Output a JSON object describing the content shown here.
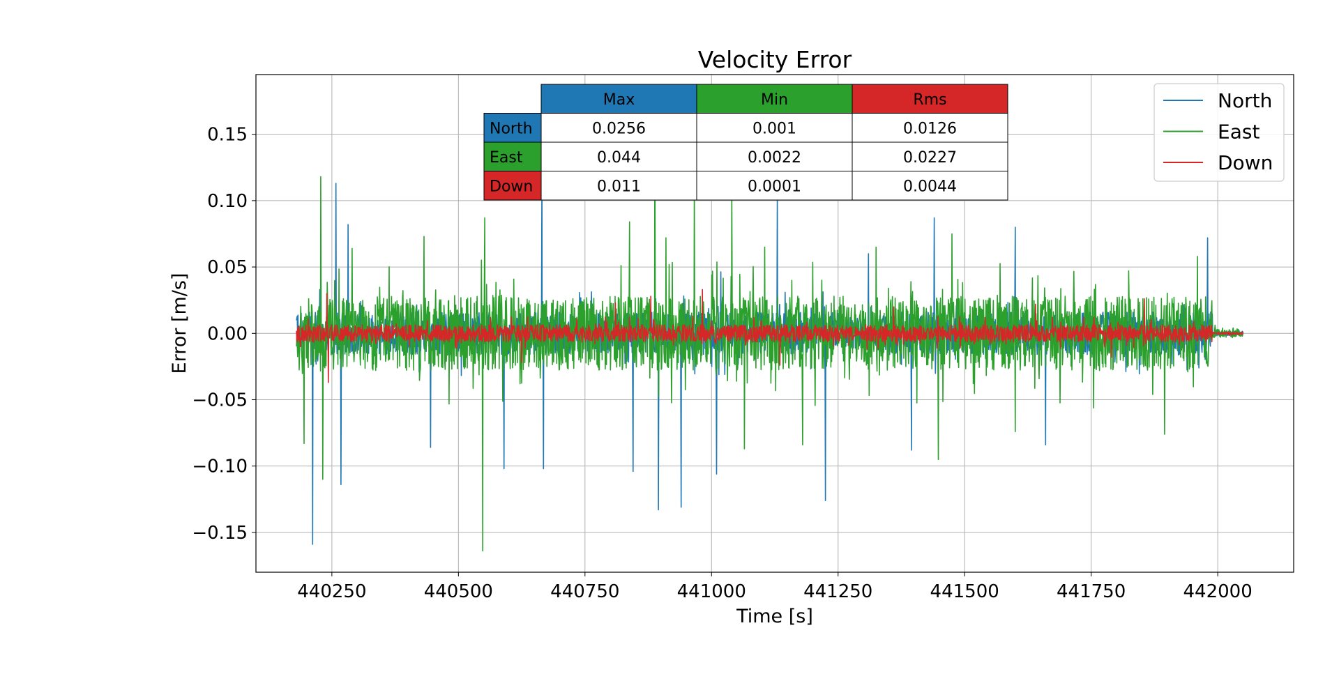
{
  "chart_data": {
    "type": "line",
    "title": "Velocity Error",
    "xlabel": "Time [s]",
    "ylabel": "Error [m/s]",
    "xlim": [
      440100,
      442150
    ],
    "ylim": [
      -0.18,
      0.195
    ],
    "grid": true,
    "x_ticks": [
      440250,
      440500,
      440750,
      441000,
      441250,
      441500,
      441750,
      442000
    ],
    "x_tick_labels": [
      "440250",
      "440500",
      "440750",
      "441000",
      "441250",
      "441500",
      "441750",
      "442000"
    ],
    "y_ticks": [
      -0.15,
      -0.1,
      -0.05,
      0.0,
      0.05,
      0.1,
      0.15
    ],
    "y_tick_labels": [
      "−0.15",
      "−0.10",
      "−0.05",
      "0.00",
      "0.05",
      "0.10",
      "0.15"
    ],
    "legend_position": "top-right",
    "series": [
      {
        "name": "North",
        "color": "#1f77b4",
        "x_start": 440180,
        "x_end": 442050,
        "active_end": 441990,
        "noise_amp": 0.016,
        "spikes": [
          {
            "x": 440212,
            "y": -0.159
          },
          {
            "x": 440226,
            "y": 0.033
          },
          {
            "x": 440258,
            "y": 0.113
          },
          {
            "x": 440268,
            "y": -0.114
          },
          {
            "x": 440282,
            "y": 0.082
          },
          {
            "x": 440445,
            "y": -0.086
          },
          {
            "x": 440590,
            "y": -0.102
          },
          {
            "x": 440665,
            "y": 0.125
          },
          {
            "x": 440668,
            "y": -0.102
          },
          {
            "x": 440845,
            "y": -0.104
          },
          {
            "x": 440895,
            "y": -0.133
          },
          {
            "x": 440940,
            "y": -0.131
          },
          {
            "x": 441010,
            "y": -0.106
          },
          {
            "x": 441130,
            "y": 0.104
          },
          {
            "x": 441225,
            "y": -0.126
          },
          {
            "x": 441310,
            "y": 0.06
          },
          {
            "x": 441395,
            "y": -0.088
          },
          {
            "x": 441440,
            "y": 0.087
          },
          {
            "x": 441600,
            "y": 0.08
          },
          {
            "x": 441660,
            "y": -0.084
          },
          {
            "x": 441980,
            "y": 0.072
          }
        ]
      },
      {
        "name": "East",
        "color": "#2ca02c",
        "x_start": 440180,
        "x_end": 442050,
        "active_end": 441990,
        "noise_amp": 0.028,
        "spikes": [
          {
            "x": 440195,
            "y": -0.083
          },
          {
            "x": 440228,
            "y": 0.118
          },
          {
            "x": 440232,
            "y": -0.11
          },
          {
            "x": 440290,
            "y": 0.064
          },
          {
            "x": 440432,
            "y": 0.073
          },
          {
            "x": 440548,
            "y": -0.164
          },
          {
            "x": 440552,
            "y": 0.087
          },
          {
            "x": 440838,
            "y": 0.084
          },
          {
            "x": 440888,
            "y": 0.181
          },
          {
            "x": 440910,
            "y": 0.072
          },
          {
            "x": 440966,
            "y": 0.117
          },
          {
            "x": 441040,
            "y": 0.11
          },
          {
            "x": 441065,
            "y": -0.087
          },
          {
            "x": 441105,
            "y": 0.065
          },
          {
            "x": 441180,
            "y": -0.084
          },
          {
            "x": 441325,
            "y": 0.065
          },
          {
            "x": 441448,
            "y": -0.095
          },
          {
            "x": 441475,
            "y": 0.075
          },
          {
            "x": 441600,
            "y": -0.074
          },
          {
            "x": 441895,
            "y": -0.076
          },
          {
            "x": 441960,
            "y": 0.058
          }
        ]
      },
      {
        "name": "Down",
        "color": "#d62728",
        "x_start": 440180,
        "x_end": 442050,
        "active_end": 441990,
        "noise_amp": 0.0065,
        "spikes": [
          {
            "x": 440188,
            "y": -0.01
          },
          {
            "x": 440240,
            "y": 0.03
          },
          {
            "x": 440243,
            "y": -0.037
          },
          {
            "x": 440625,
            "y": -0.022
          },
          {
            "x": 440810,
            "y": 0.023
          },
          {
            "x": 440880,
            "y": 0.028
          },
          {
            "x": 440982,
            "y": 0.033
          },
          {
            "x": 441135,
            "y": -0.024
          },
          {
            "x": 441360,
            "y": 0.02
          },
          {
            "x": 441640,
            "y": 0.022
          },
          {
            "x": 441790,
            "y": -0.018
          },
          {
            "x": 441855,
            "y": 0.026
          }
        ]
      }
    ],
    "table": {
      "col_headers": [
        "Max",
        "Min",
        "Rms"
      ],
      "col_colors": [
        "#1f77b4",
        "#2ca02c",
        "#d62728"
      ],
      "row_headers": [
        "North",
        "East",
        "Down"
      ],
      "row_colors": [
        "#1f77b4",
        "#2ca02c",
        "#d62728"
      ],
      "cells": [
        [
          "0.0256",
          "0.001",
          "0.0126"
        ],
        [
          "0.044",
          "0.0022",
          "0.0227"
        ],
        [
          "0.011",
          "0.0001",
          "0.0044"
        ]
      ]
    }
  }
}
